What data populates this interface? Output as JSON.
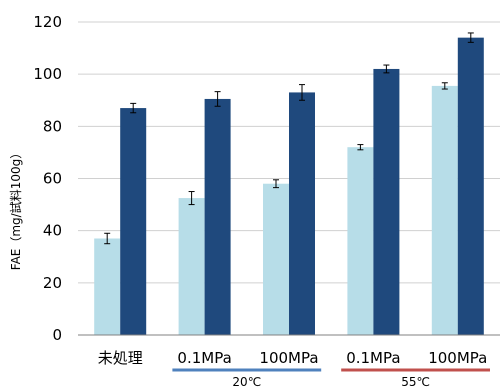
{
  "chart_data": {
    "type": "bar",
    "title": "",
    "xlabel": "",
    "ylabel": "FAE（mg/試料100g）",
    "ylim": [
      0,
      120
    ],
    "yticks": [
      0,
      20,
      40,
      60,
      80,
      100,
      120
    ],
    "grid": true,
    "categories": [
      "未処理",
      "0.1MPa",
      "100MPa",
      "0.1MPa",
      "100MPa"
    ],
    "series": [
      {
        "name": "",
        "color": "#b7dde8",
        "values": [
          37,
          52.5,
          58,
          72,
          95.5
        ],
        "errors": [
          2,
          2.5,
          1.5,
          1,
          1.2
        ]
      },
      {
        "name": "",
        "color": "#1f497d",
        "values": [
          87,
          90.5,
          93,
          102,
          114
        ],
        "errors": [
          1.8,
          2.8,
          3,
          1.5,
          1.8
        ]
      }
    ],
    "groups": [
      {
        "label": "20℃",
        "line_color": "#4f81bd",
        "categories": [
          1,
          2
        ]
      },
      {
        "label": "55℃",
        "line_color": "#c0504d",
        "categories": [
          3,
          4
        ]
      }
    ]
  }
}
